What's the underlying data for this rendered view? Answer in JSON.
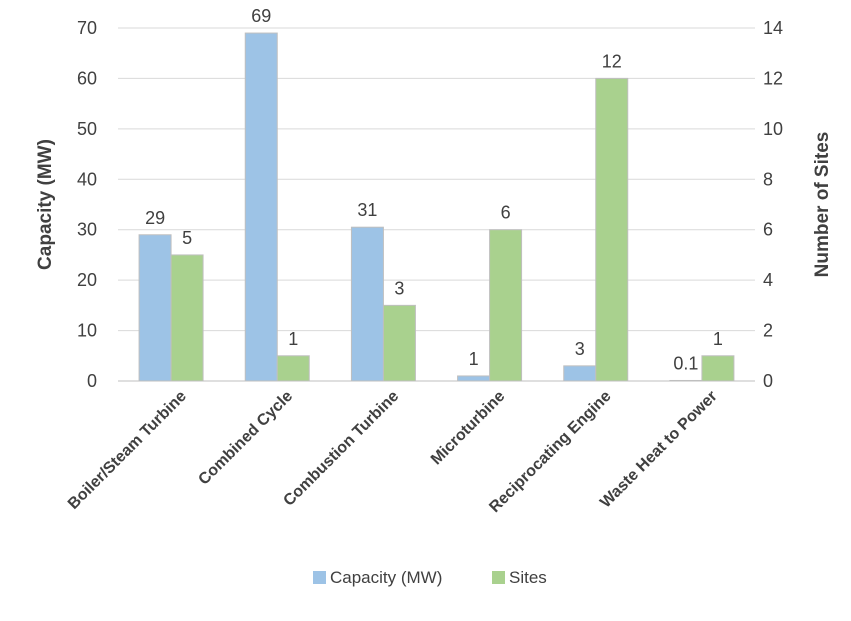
{
  "chart_data": {
    "type": "bar",
    "categories": [
      "Boiler/Steam Turbine",
      "Combined Cycle",
      "Combustion Turbine",
      "Microturbine",
      "Reciprocating Engine",
      "Waste Heat to Power"
    ],
    "series": [
      {
        "name": "Capacity (MW)",
        "axis": "left",
        "values": [
          29,
          69,
          30.5,
          1,
          3,
          0.1
        ],
        "labels": [
          "29",
          "69",
          "31",
          "1",
          "3",
          "0.1"
        ],
        "color": "#9DC3E6"
      },
      {
        "name": "Sites",
        "axis": "right",
        "values": [
          5,
          1,
          3,
          6,
          12,
          1
        ],
        "labels": [
          "5",
          "1",
          "3",
          "6",
          "12",
          "1"
        ],
        "color": "#A9D18E"
      }
    ],
    "ylabel": "Capacity (MW)",
    "y2label": "Number of Sites",
    "ylim": [
      0,
      70
    ],
    "y2lim": [
      0,
      14
    ],
    "yticks": [
      "0",
      "10",
      "20",
      "30",
      "40",
      "50",
      "60",
      "70"
    ],
    "y2ticks": [
      "0",
      "2",
      "4",
      "6",
      "8",
      "10",
      "12",
      "14"
    ],
    "grid": true,
    "legend": "bottom"
  }
}
